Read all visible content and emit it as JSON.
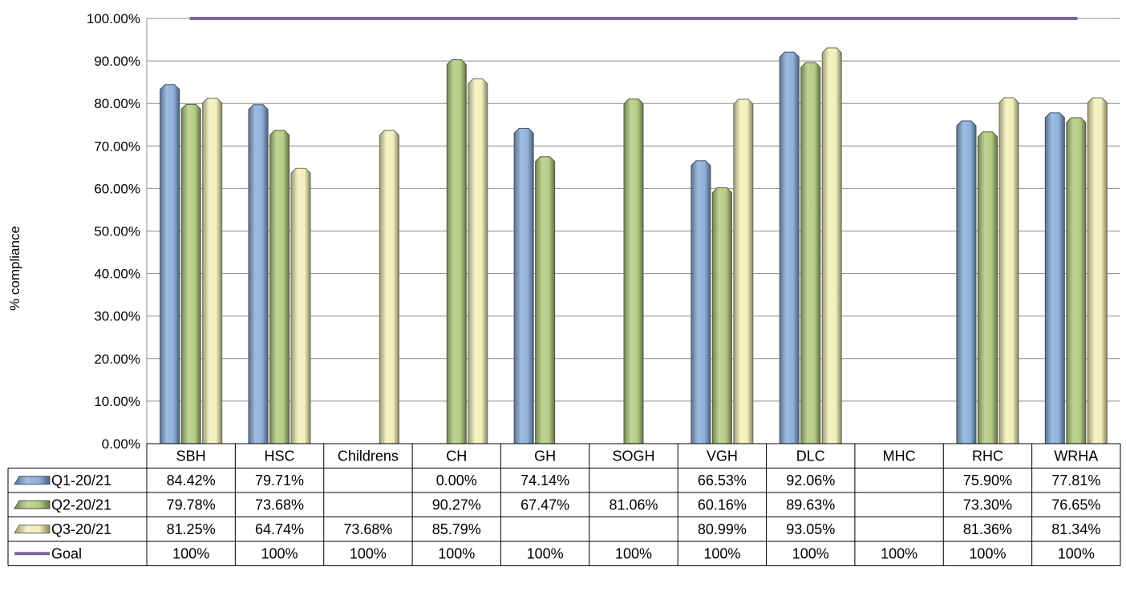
{
  "chart_data": {
    "type": "bar",
    "title": "",
    "xlabel": "",
    "ylabel": "% compliance",
    "ylim": [
      0,
      100
    ],
    "yticks": [
      0,
      10,
      20,
      30,
      40,
      50,
      60,
      70,
      80,
      90,
      100
    ],
    "ytick_labels": [
      "0.00%",
      "10.00%",
      "20.00%",
      "30.00%",
      "40.00%",
      "50.00%",
      "60.00%",
      "70.00%",
      "80.00%",
      "90.00%",
      "100.00%"
    ],
    "grid": true,
    "legend": "data-table",
    "categories": [
      "SBH",
      "HSC",
      "Childrens",
      "CH",
      "GH",
      "SOGH",
      "VGH",
      "DLC",
      "MHC",
      "RHC",
      "WRHA"
    ],
    "series": [
      {
        "name": "Q1-20/21",
        "color": "#8eb0da",
        "values": [
          84.42,
          79.71,
          null,
          0.0,
          74.14,
          null,
          66.53,
          92.06,
          null,
          75.9,
          77.81
        ],
        "labels": [
          "84.42%",
          "79.71%",
          "",
          "0.00%",
          "74.14%",
          "",
          "66.53%",
          "92.06%",
          "",
          "75.90%",
          "77.81%"
        ]
      },
      {
        "name": "Q2-20/21",
        "color": "#b5cc84",
        "values": [
          79.78,
          73.68,
          null,
          90.27,
          67.47,
          81.06,
          60.16,
          89.63,
          null,
          73.3,
          76.65
        ],
        "labels": [
          "79.78%",
          "73.68%",
          "",
          "90.27%",
          "67.47%",
          "81.06%",
          "60.16%",
          "89.63%",
          "",
          "73.30%",
          "76.65%"
        ]
      },
      {
        "name": "Q3-20/21",
        "color": "#f3f0bb",
        "values": [
          81.25,
          64.74,
          73.68,
          85.79,
          null,
          null,
          80.99,
          93.05,
          null,
          81.36,
          81.34
        ],
        "labels": [
          "81.25%",
          "64.74%",
          "73.68%",
          "85.79%",
          "",
          "",
          "80.99%",
          "93.05%",
          "",
          "81.36%",
          "81.34%"
        ]
      },
      {
        "name": "Goal",
        "type": "line",
        "color": "#8064a2",
        "values": [
          100,
          100,
          100,
          100,
          100,
          100,
          100,
          100,
          100,
          100,
          100
        ],
        "labels": [
          "100%",
          "100%",
          "100%",
          "100%",
          "100%",
          "100%",
          "100%",
          "100%",
          "100%",
          "100%",
          "100%"
        ]
      }
    ]
  }
}
